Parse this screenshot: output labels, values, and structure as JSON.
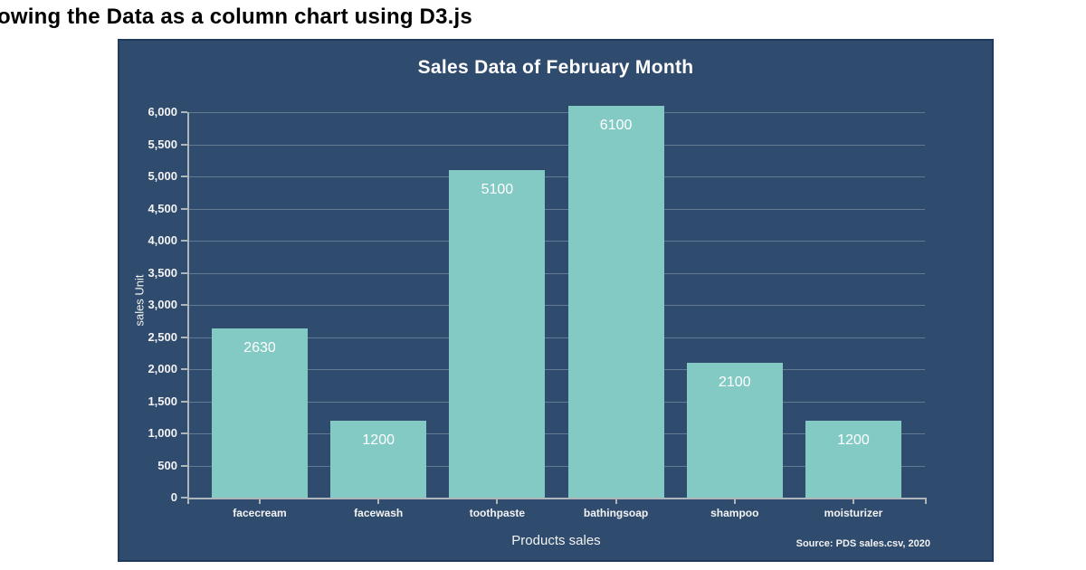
{
  "page": {
    "heading": "owing the Data as a column chart using D3.js"
  },
  "chart": {
    "title": "Sales Data of February Month",
    "ylabel": "sales Unit",
    "xlabel": "Products sales",
    "source": "Source: PDS sales.csv, 2020"
  },
  "chart_data": {
    "type": "bar",
    "title": "Sales Data of February Month",
    "categories": [
      "facecream",
      "facewash",
      "toothpaste",
      "bathingsoap",
      "shampoo",
      "moisturizer"
    ],
    "values": [
      2630,
      1200,
      5100,
      6100,
      2100,
      1200
    ],
    "xlabel": "Products sales",
    "ylabel": "sales Unit",
    "ylim": [
      0,
      6000
    ],
    "ytick_step": 500,
    "grid": true,
    "legend_position": "none",
    "bar_color": "#83CAC4",
    "background": "#2F4B6E",
    "axis_color": "#AEB6BA",
    "grid_color": "rgba(255,255,255,0.25)",
    "text_color": "#F3F3F3",
    "value_label_color": "#FFFFFF",
    "source": "Source: PDS sales.csv, 2020"
  },
  "colors": {
    "page_bg": "#FFFFFF",
    "panel_bg": "#2F4B6E",
    "panel_border": "#1F3A5F",
    "heading_text": "#000000"
  }
}
